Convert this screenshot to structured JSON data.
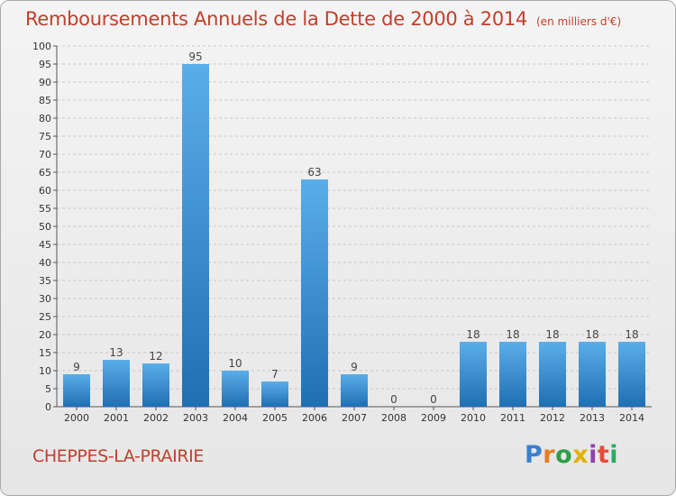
{
  "header": {
    "title": "Remboursements Annuels de la Dette de 2000 à 2014",
    "subtitle": "(en milliers d'€)"
  },
  "footer": {
    "city": "CHEPPES-LA-PRAIRIE",
    "logo_text": "Proxiti"
  },
  "colors": {
    "title": "#c0402b",
    "bar_top": "#5aaee8",
    "bar_bottom": "#1f6fb3",
    "grid": "#c8c8c8",
    "logo": [
      "#3a7fd0",
      "#e67e22",
      "#2e9e45",
      "#e2b000",
      "#8e44ad",
      "#e74c3c",
      "#27ae60"
    ]
  },
  "chart_data": {
    "type": "bar",
    "title": "Remboursements Annuels de la Dette de 2000 à 2014",
    "categories": [
      "2000",
      "2001",
      "2002",
      "2003",
      "2004",
      "2005",
      "2006",
      "2007",
      "2008",
      "2009",
      "2010",
      "2011",
      "2012",
      "2013",
      "2014"
    ],
    "values": [
      9,
      13,
      12,
      95,
      10,
      7,
      63,
      9,
      0,
      0,
      18,
      18,
      18,
      18,
      18
    ],
    "ylim": [
      0,
      100
    ],
    "yticks": [
      0,
      5,
      10,
      15,
      20,
      25,
      30,
      35,
      40,
      45,
      50,
      55,
      60,
      65,
      70,
      75,
      80,
      85,
      90,
      95,
      100
    ],
    "grid": true,
    "data_labels": true
  }
}
